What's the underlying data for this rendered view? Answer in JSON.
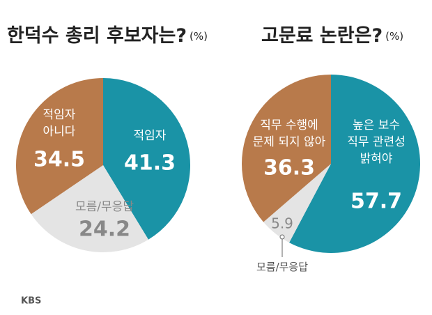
{
  "chart_data": [
    {
      "type": "pie",
      "title": "한덕수 총리 후보자는?",
      "unit": "(%)",
      "categories": [
        "적임자",
        "모름/무응답",
        "적임자\n아니다"
      ],
      "values": [
        41.3,
        24.2,
        34.5
      ],
      "colors": [
        "#1a93a6",
        "#e4e4e4",
        "#b87a4b"
      ]
    },
    {
      "type": "pie",
      "title": "고문료 논란은?",
      "unit": "(%)",
      "categories": [
        "높은 보수\n직무 관련성\n밝혀야",
        "모름/무응답",
        "직무 수행에\n문제 되지 않아"
      ],
      "values": [
        57.7,
        5.9,
        36.3
      ],
      "colors": [
        "#1a93a6",
        "#e4e4e4",
        "#b87a4b"
      ]
    }
  ],
  "logo": "KBS"
}
